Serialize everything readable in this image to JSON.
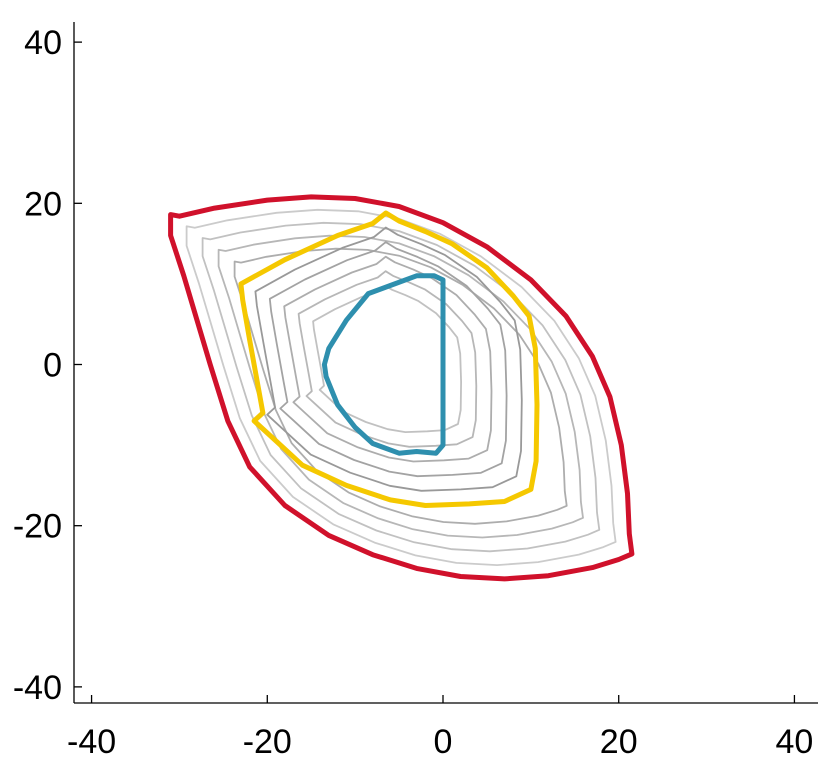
{
  "chart_data": {
    "type": "line",
    "title": "",
    "xlabel": "",
    "ylabel": "",
    "xlim": [
      -42,
      42
    ],
    "ylim": [
      -42,
      42
    ],
    "x_ticks": [
      -40,
      -20,
      0,
      20,
      40
    ],
    "y_ticks": [
      -40,
      -20,
      0,
      20,
      40
    ],
    "x_tick_labels": [
      "-40",
      "-20",
      "0",
      "20",
      "40"
    ],
    "y_tick_labels": [
      "-40",
      "-20",
      "0",
      "20",
      "40"
    ],
    "grid": false,
    "legend": "none",
    "colors": {
      "outer": "#d0112b",
      "middle": "#f5c800",
      "inner": "#2e8fae",
      "contours": [
        "#999999",
        "#a3a3a3",
        "#adadad",
        "#b7b7b7",
        "#c1c1c1",
        "#cbcbcb"
      ]
    },
    "series": [
      {
        "role": "outer",
        "points": [
          [
            -31,
            18.6
          ],
          [
            -30,
            18.4
          ],
          [
            -26,
            19.4
          ],
          [
            -20,
            20.4
          ],
          [
            -15,
            20.8
          ],
          [
            -10,
            20.6
          ],
          [
            -5,
            19.6
          ],
          [
            0,
            17.6
          ],
          [
            5,
            14.6
          ],
          [
            10,
            10.5
          ],
          [
            14,
            6
          ],
          [
            17,
            1
          ],
          [
            19,
            -4
          ],
          [
            20.3,
            -10
          ],
          [
            21,
            -16
          ],
          [
            21.2,
            -21
          ],
          [
            21.5,
            -23.5
          ],
          [
            20,
            -24.2
          ],
          [
            17,
            -25.2
          ],
          [
            12,
            -26.2
          ],
          [
            7,
            -26.6
          ],
          [
            2,
            -26.3
          ],
          [
            -3,
            -25.3
          ],
          [
            -8,
            -23.6
          ],
          [
            -13,
            -21.2
          ],
          [
            -18,
            -17.5
          ],
          [
            -22,
            -12.7
          ],
          [
            -24.5,
            -7
          ],
          [
            -26.5,
            0
          ],
          [
            -28,
            5.5
          ],
          [
            -29.5,
            11
          ],
          [
            -31,
            16
          ],
          [
            -31,
            18.6
          ]
        ]
      },
      {
        "role": "middle",
        "points": [
          [
            -23,
            10
          ],
          [
            -18,
            13
          ],
          [
            -12,
            16
          ],
          [
            -8,
            17.5
          ],
          [
            -6.5,
            18.8
          ],
          [
            -5,
            17.8
          ],
          [
            -2,
            16.5
          ],
          [
            1,
            15
          ],
          [
            5,
            12
          ],
          [
            8,
            8.5
          ],
          [
            9.8,
            6
          ],
          [
            10.5,
            2
          ],
          [
            10.7,
            -5
          ],
          [
            10.6,
            -12
          ],
          [
            10,
            -15.5
          ],
          [
            7,
            -17
          ],
          [
            3,
            -17.3
          ],
          [
            -2,
            -17.5
          ],
          [
            -6,
            -16.8
          ],
          [
            -11,
            -15
          ],
          [
            -16,
            -12.5
          ],
          [
            -19.5,
            -9
          ],
          [
            -21.5,
            -7
          ],
          [
            -20.5,
            -6
          ],
          [
            -21,
            -3
          ],
          [
            -22,
            3
          ],
          [
            -22.8,
            8
          ],
          [
            -23,
            10
          ]
        ]
      },
      {
        "role": "inner",
        "points": [
          [
            0,
            10.5
          ],
          [
            0,
            -10
          ],
          [
            -0.8,
            -11
          ],
          [
            -3,
            -10.8
          ],
          [
            -5,
            -11
          ],
          [
            -8,
            -9.8
          ],
          [
            -10,
            -7.8
          ],
          [
            -12,
            -5
          ],
          [
            -13.3,
            -1.5
          ],
          [
            -13.5,
            0
          ],
          [
            -13,
            2
          ],
          [
            -11,
            5.5
          ],
          [
            -8.5,
            8.8
          ],
          [
            -6,
            9.8
          ],
          [
            -3,
            11
          ],
          [
            -1,
            11
          ],
          [
            0,
            10.5
          ]
        ]
      }
    ]
  }
}
